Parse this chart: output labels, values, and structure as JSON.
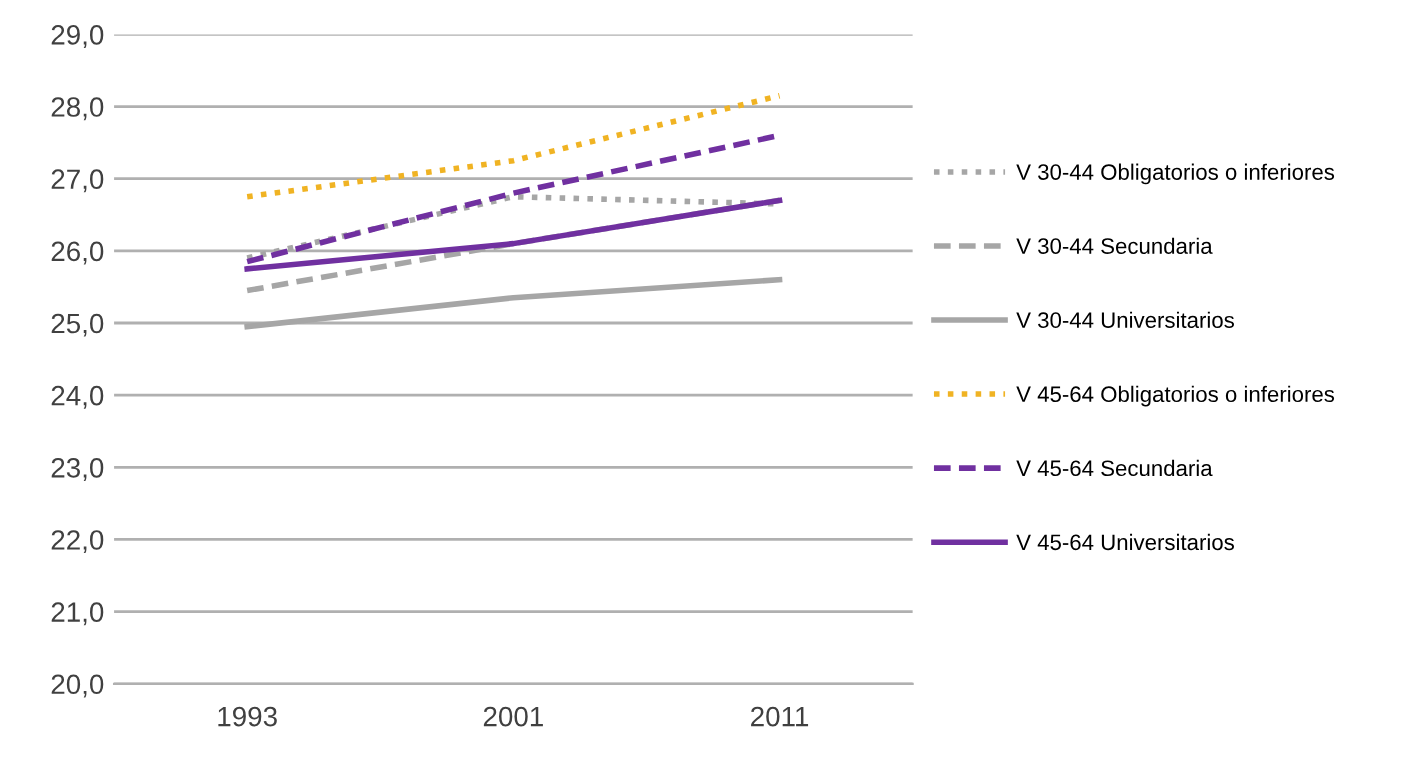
{
  "chart_data": {
    "type": "line",
    "categories": [
      "1993",
      "2001",
      "2011"
    ],
    "series": [
      {
        "name": "V 30-44 Obligatorios o inferiores",
        "color": "#a6a6a6",
        "line_style": "dotted",
        "values": [
          25.9,
          26.75,
          26.65
        ]
      },
      {
        "name": "V 30-44 Secundaria",
        "color": "#a6a6a6",
        "line_style": "dashed",
        "values": [
          25.45,
          26.1,
          26.7
        ]
      },
      {
        "name": "V 30-44 Universitarios",
        "color": "#a6a6a6",
        "line_style": "solid",
        "values": [
          24.95,
          25.35,
          25.6
        ]
      },
      {
        "name": "V 45-64 Obligatorios o inferiores",
        "color": "#f0b323",
        "line_style": "dotted",
        "values": [
          26.75,
          27.25,
          28.15
        ]
      },
      {
        "name": "V 45-64 Secundaria",
        "color": "#7030a0",
        "line_style": "dashed",
        "values": [
          25.85,
          26.8,
          27.6
        ]
      },
      {
        "name": "V 45-64 Universitarios",
        "color": "#7030a0",
        "line_style": "solid",
        "values": [
          25.75,
          26.1,
          26.7
        ]
      }
    ],
    "ylim": [
      20,
      29
    ],
    "yticks": [
      {
        "value": 20,
        "label": "20,0"
      },
      {
        "value": 21,
        "label": "21,0"
      },
      {
        "value": 22,
        "label": "22,0"
      },
      {
        "value": 23,
        "label": "23,0"
      },
      {
        "value": 24,
        "label": "24,0"
      },
      {
        "value": 25,
        "label": "25,0"
      },
      {
        "value": 26,
        "label": "26,0"
      },
      {
        "value": 27,
        "label": "27,0"
      },
      {
        "value": 28,
        "label": "28,0"
      },
      {
        "value": 29,
        "label": "29,0"
      }
    ],
    "grid": "y",
    "legend": "right",
    "marker": "none"
  }
}
